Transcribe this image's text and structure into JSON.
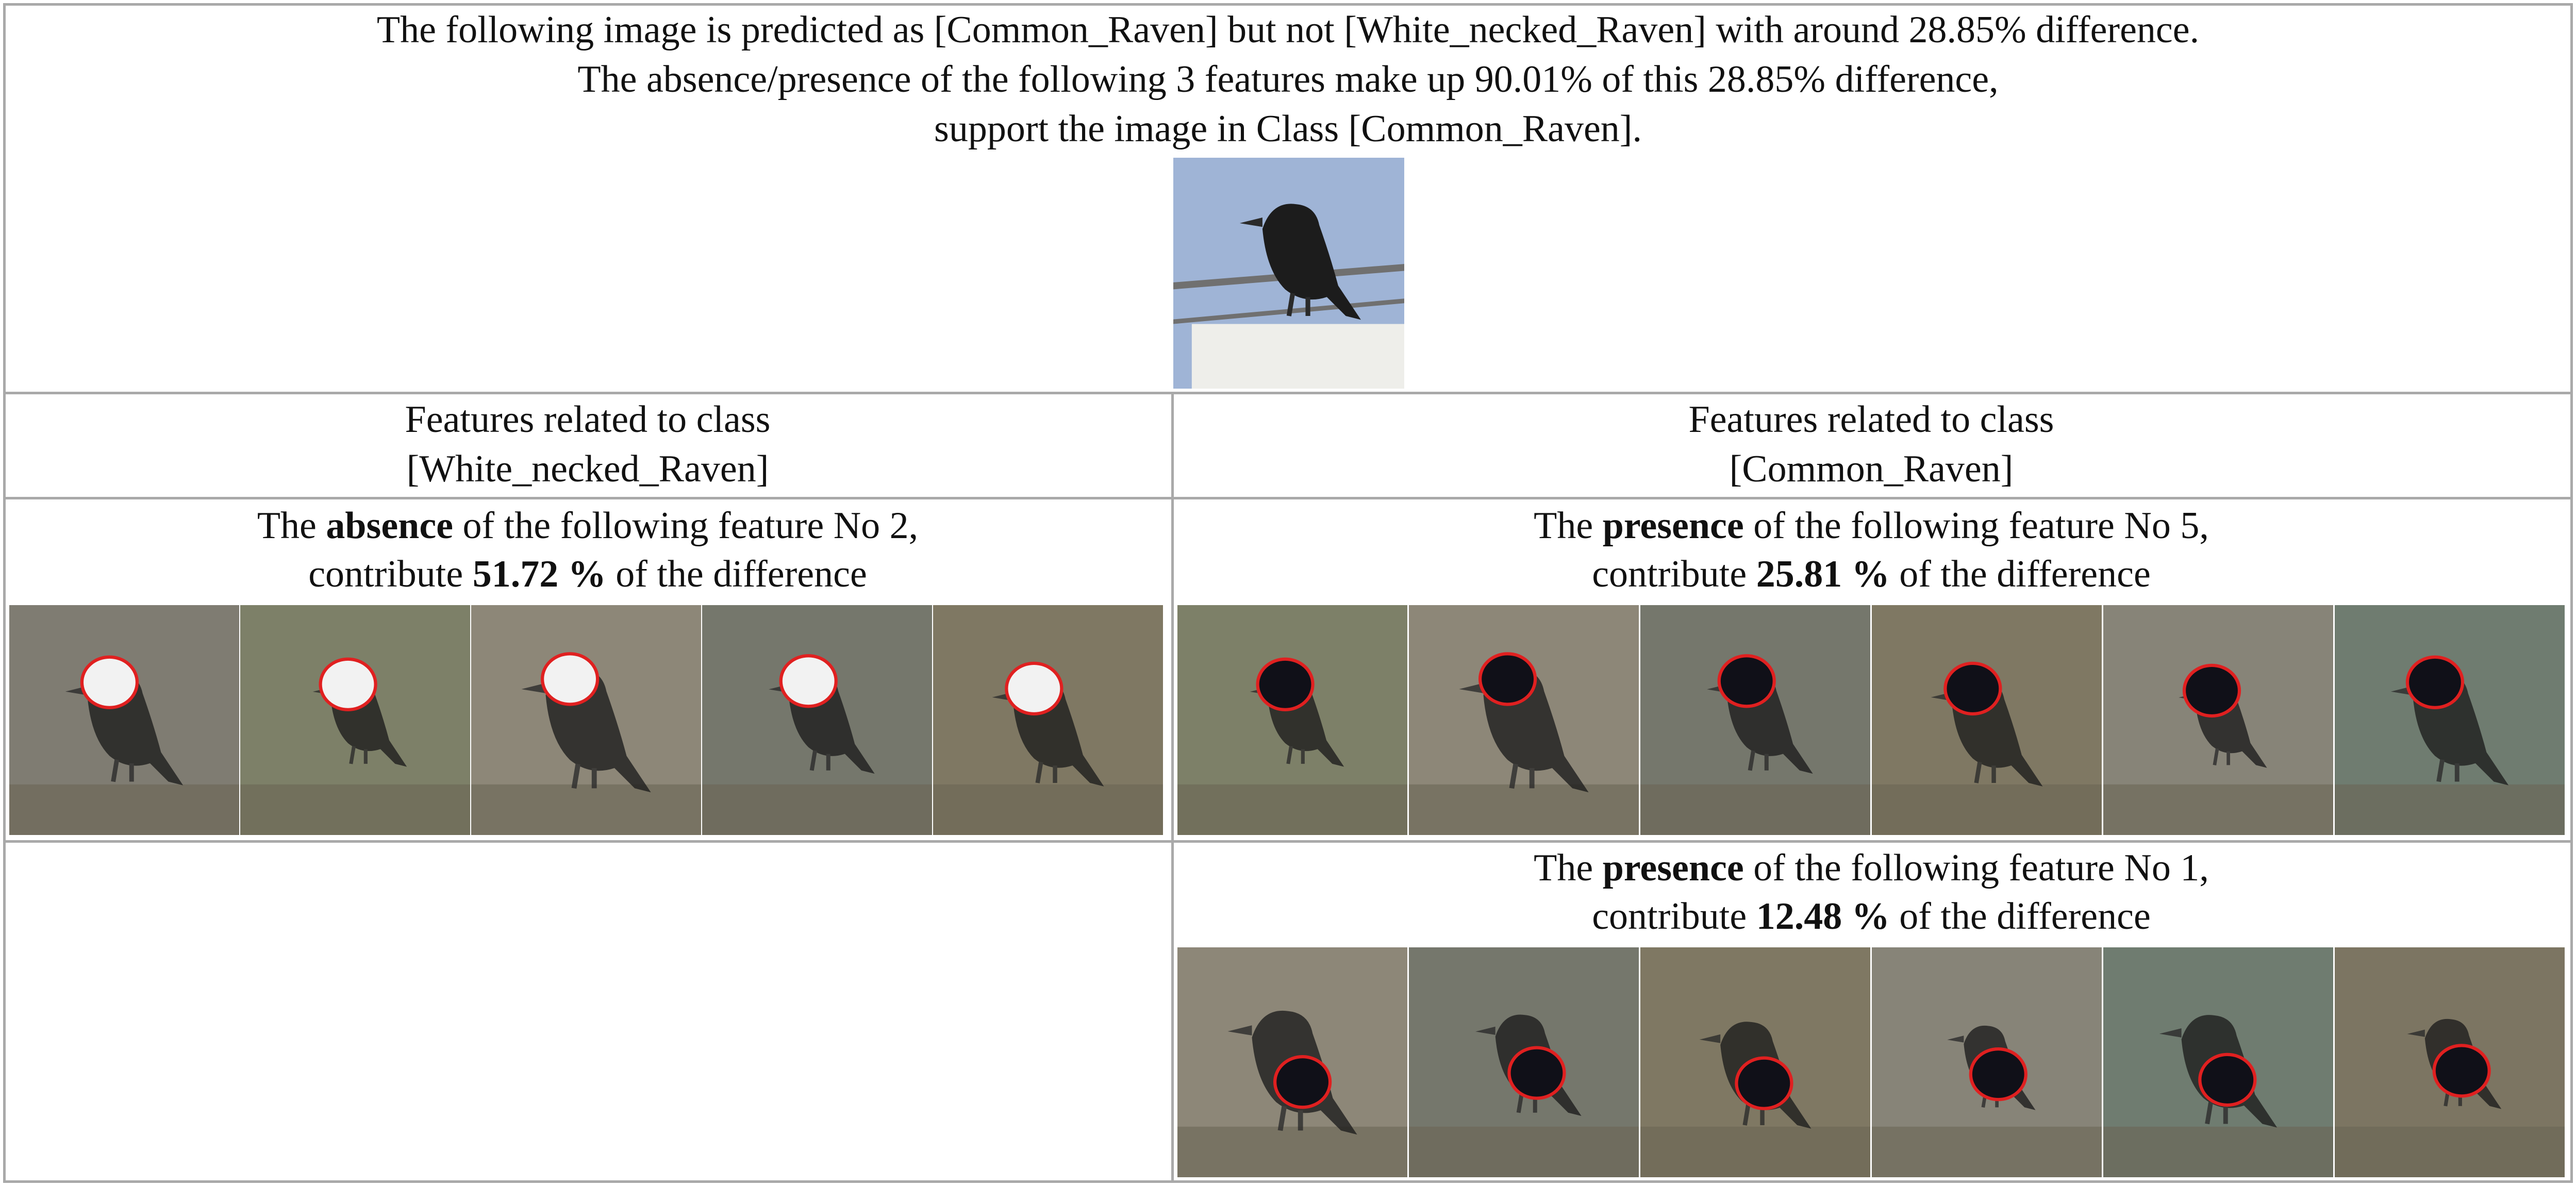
{
  "header": {
    "line1": "The following image is predicted as [Common_Raven] but not [White_necked_Raven] with around 28.85% difference.",
    "line2": "The absence/presence of the following 3 features make up 90.01% of this 28.85% difference,",
    "line3": "support the image in Class [Common_Raven]."
  },
  "left_column": {
    "header_line1": "Features related to class",
    "header_line2": "[White_necked_Raven]",
    "feature": {
      "prefix": "The",
      "kind": "absence",
      "middle": "of the following feature No 2,",
      "contribute": "contribute",
      "percent": "51.72 %",
      "suffix": "of the difference"
    }
  },
  "right_column": {
    "header_line1": "Features related to class",
    "header_line2": "[Common_Raven]",
    "features": [
      {
        "prefix": "The",
        "kind": "presence",
        "middle": "of the following feature No 5,",
        "contribute": "contribute",
        "percent": "25.81 %",
        "suffix": "of the difference"
      },
      {
        "prefix": "The",
        "kind": "presence",
        "middle": "of the following feature No 1,",
        "contribute": "contribute",
        "percent": "12.48 %",
        "suffix": "of the difference"
      }
    ]
  },
  "colors": {
    "grid": "#a9a9a9",
    "highlight_outline": "#e02020",
    "sky": "#9fb4d6",
    "muted_bg": "#8f8a7e"
  }
}
